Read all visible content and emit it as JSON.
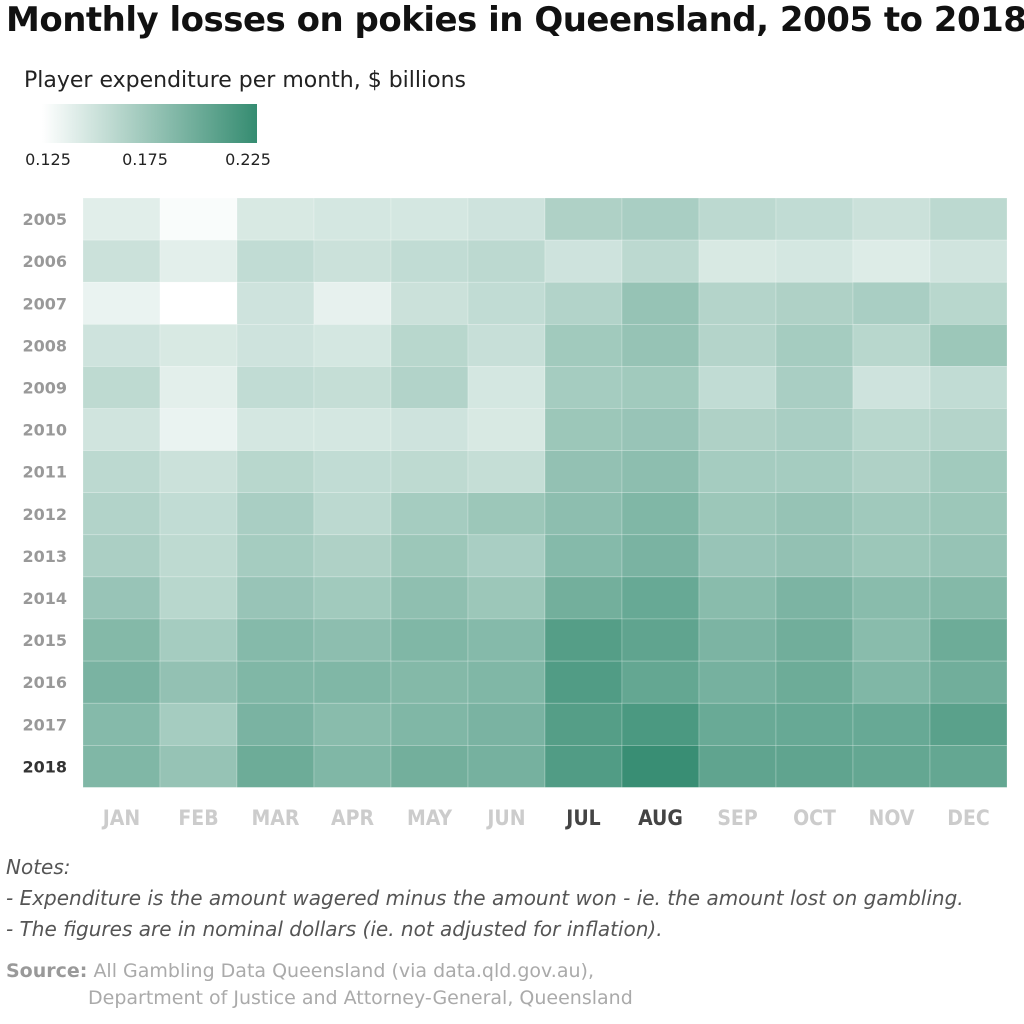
{
  "title": "Monthly losses on pokies in Queensland, 2005 to 2018",
  "chart_data": {
    "type": "heatmap",
    "title": "Monthly losses on pokies in Queensland, 2005 to 2018",
    "legend_title": "Player expenditure per month, $ billions",
    "legend_ticks": [
      "0.125",
      "0.175",
      "0.225"
    ],
    "color_range": {
      "low": 0.122,
      "high": 0.23,
      "low_color": "#ffffff",
      "high_color": "#358c71"
    },
    "x_categories": [
      "JAN",
      "FEB",
      "MAR",
      "APR",
      "MAY",
      "JUN",
      "JUL",
      "AUG",
      "SEP",
      "OCT",
      "NOV",
      "DEC"
    ],
    "highlighted_x": [
      "JUL",
      "AUG"
    ],
    "y_categories": [
      "2005",
      "2006",
      "2007",
      "2008",
      "2009",
      "2010",
      "2011",
      "2012",
      "2013",
      "2014",
      "2015",
      "2016",
      "2017",
      "2018"
    ],
    "highlighted_y": [
      "2018"
    ],
    "values": [
      [
        0.138,
        0.125,
        0.143,
        0.145,
        0.145,
        0.148,
        0.165,
        0.168,
        0.158,
        0.155,
        0.15,
        0.158
      ],
      [
        0.15,
        0.137,
        0.155,
        0.15,
        0.155,
        0.158,
        0.148,
        0.158,
        0.143,
        0.145,
        0.14,
        0.147
      ],
      [
        0.133,
        0.122,
        0.148,
        0.135,
        0.15,
        0.155,
        0.163,
        0.178,
        0.162,
        0.165,
        0.168,
        0.16
      ],
      [
        0.148,
        0.143,
        0.148,
        0.145,
        0.16,
        0.152,
        0.172,
        0.178,
        0.162,
        0.17,
        0.16,
        0.175
      ],
      [
        0.157,
        0.137,
        0.155,
        0.153,
        0.163,
        0.145,
        0.17,
        0.172,
        0.155,
        0.168,
        0.148,
        0.155
      ],
      [
        0.147,
        0.133,
        0.145,
        0.145,
        0.148,
        0.143,
        0.175,
        0.177,
        0.165,
        0.168,
        0.16,
        0.162
      ],
      [
        0.158,
        0.15,
        0.16,
        0.155,
        0.157,
        0.153,
        0.18,
        0.183,
        0.17,
        0.17,
        0.165,
        0.172
      ],
      [
        0.163,
        0.155,
        0.168,
        0.158,
        0.17,
        0.175,
        0.183,
        0.19,
        0.175,
        0.178,
        0.173,
        0.175
      ],
      [
        0.167,
        0.157,
        0.17,
        0.165,
        0.175,
        0.168,
        0.187,
        0.193,
        0.177,
        0.18,
        0.175,
        0.178
      ],
      [
        0.177,
        0.16,
        0.177,
        0.172,
        0.182,
        0.175,
        0.197,
        0.203,
        0.185,
        0.192,
        0.185,
        0.188
      ],
      [
        0.188,
        0.17,
        0.187,
        0.183,
        0.19,
        0.187,
        0.213,
        0.207,
        0.192,
        0.198,
        0.185,
        0.2
      ],
      [
        0.193,
        0.18,
        0.19,
        0.19,
        0.188,
        0.19,
        0.215,
        0.205,
        0.195,
        0.2,
        0.19,
        0.198
      ],
      [
        0.187,
        0.17,
        0.193,
        0.185,
        0.19,
        0.193,
        0.213,
        0.218,
        0.202,
        0.203,
        0.203,
        0.21
      ],
      [
        0.19,
        0.178,
        0.2,
        0.19,
        0.197,
        0.195,
        0.215,
        0.228,
        0.207,
        0.207,
        0.205,
        0.205
      ]
    ]
  },
  "notes": {
    "heading": "Notes:",
    "lines": [
      "- Expenditure is the amount wagered minus the amount won - ie. the amount lost on gambling.",
      "- The figures are in nominal dollars (ie. not adjusted for inflation)."
    ]
  },
  "source": {
    "label": "Source:",
    "line1": "All Gambling Data Queensland (via data.qld.gov.au),",
    "line2": "Department of Justice and Attorney-General, Queensland"
  }
}
